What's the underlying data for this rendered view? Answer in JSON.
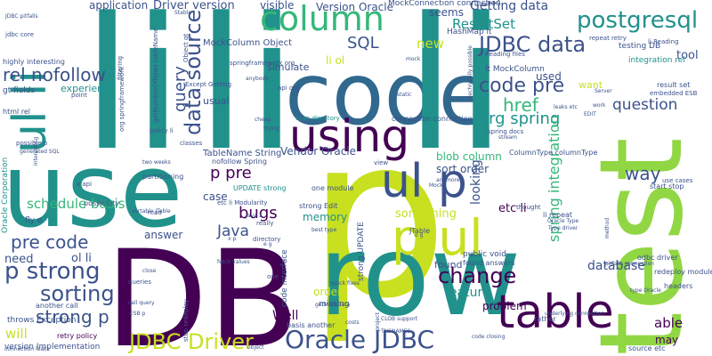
{
  "palette": {
    "purple": "#440154",
    "indigo": "#3b528b",
    "blue": "#31688e",
    "teal": "#21918c",
    "green": "#35b779",
    "lime": "#90d743",
    "yellow": "#c8e020"
  },
  "words": [
    {
      "text": "p",
      "color": "yellow"
    },
    {
      "text": "DB",
      "color": "purple"
    },
    {
      "text": "row",
      "color": "teal"
    },
    {
      "text": "use",
      "color": "teal"
    },
    {
      "text": "test",
      "color": "lime"
    },
    {
      "text": "code",
      "color": "blue"
    },
    {
      "text": "li",
      "color": "teal"
    },
    {
      "text": "li",
      "color": "teal"
    },
    {
      "text": "li",
      "color": "teal"
    },
    {
      "text": "column",
      "color": "green"
    },
    {
      "text": "using",
      "color": "purple"
    },
    {
      "text": "table",
      "color": "purple"
    },
    {
      "text": "ul p",
      "color": "indigo"
    },
    {
      "text": "p ul",
      "color": "yellow"
    },
    {
      "text": "ul li",
      "color": "teal"
    },
    {
      "text": "Oracle JDBC",
      "color": "indigo"
    },
    {
      "text": "JDBC Driver",
      "color": "yellow"
    },
    {
      "text": "JDBC data",
      "color": "indigo"
    },
    {
      "text": "postgresql",
      "color": "teal"
    },
    {
      "text": "data source",
      "color": "indigo"
    },
    {
      "text": "code pre",
      "color": "indigo"
    },
    {
      "text": "change",
      "color": "purple"
    },
    {
      "text": "sorting",
      "color": "indigo"
    },
    {
      "text": "p strong",
      "color": "indigo"
    },
    {
      "text": "strong p",
      "color": "indigo"
    },
    {
      "text": "pre code",
      "color": "indigo"
    },
    {
      "text": "rel nofollow",
      "color": "indigo"
    },
    {
      "text": "Getting data",
      "color": "indigo"
    },
    {
      "text": "ResultSet",
      "color": "teal"
    },
    {
      "text": "SQL",
      "color": "indigo"
    },
    {
      "text": "query",
      "color": "indigo"
    },
    {
      "text": "new",
      "color": "yellow"
    },
    {
      "text": "href",
      "color": "green"
    },
    {
      "text": "org spring",
      "color": "teal"
    },
    {
      "text": "question",
      "color": "indigo"
    },
    {
      "text": "spring integration",
      "color": "green"
    },
    {
      "text": "way",
      "color": "indigo"
    },
    {
      "text": "bugs",
      "color": "purple"
    },
    {
      "text": "Java",
      "color": "indigo"
    },
    {
      "text": "p pre",
      "color": "purple"
    },
    {
      "text": "schedule basis",
      "color": "green"
    },
    {
      "text": "Driver version",
      "color": "indigo"
    },
    {
      "text": "application",
      "color": "indigo"
    },
    {
      "text": "Version Oracle",
      "color": "indigo"
    },
    {
      "text": "MockConnection connection",
      "color": "indigo"
    },
    {
      "text": "visible",
      "color": "indigo"
    },
    {
      "text": "seems",
      "color": "indigo"
    },
    {
      "text": "Vendor Oracle",
      "color": "indigo"
    },
    {
      "text": "blob column",
      "color": "green"
    },
    {
      "text": "sort order",
      "color": "indigo"
    },
    {
      "text": "something",
      "color": "yellow"
    },
    {
      "text": "etc li",
      "color": "purple"
    },
    {
      "text": "memory",
      "color": "teal"
    },
    {
      "text": "looking",
      "color": "indigo"
    },
    {
      "text": "feature",
      "color": "teal"
    },
    {
      "text": "problem",
      "color": "purple"
    },
    {
      "text": "database",
      "color": "indigo"
    },
    {
      "text": "able",
      "color": "purple"
    },
    {
      "text": "may",
      "color": "purple"
    },
    {
      "text": "order",
      "color": "yellow"
    },
    {
      "text": "Well",
      "color": "purple"
    },
    {
      "text": "will",
      "color": "yellow"
    },
    {
      "text": "need",
      "color": "indigo"
    },
    {
      "text": "ol li",
      "color": "indigo"
    },
    {
      "text": "answer",
      "color": "indigo"
    },
    {
      "text": "case",
      "color": "indigo"
    },
    {
      "text": "used",
      "color": "indigo"
    },
    {
      "text": "want",
      "color": "yellow"
    },
    {
      "text": "tool",
      "color": "indigo"
    },
    {
      "text": "found",
      "color": "indigo"
    },
    {
      "text": "experience",
      "color": "teal"
    },
    {
      "text": "usual",
      "color": "indigo"
    },
    {
      "text": "simulate",
      "color": "indigo"
    },
    {
      "text": "li ol",
      "color": "yellow"
    },
    {
      "text": "TableName String",
      "color": "indigo"
    },
    {
      "text": "MockColumn Object",
      "color": "indigo"
    },
    {
      "text": "lt MockColumn",
      "color": "indigo"
    },
    {
      "text": "HashMap lt",
      "color": "indigo"
    },
    {
      "text": "integration rel",
      "color": "teal"
    },
    {
      "text": "testing DB",
      "color": "indigo"
    },
    {
      "text": "retry policy",
      "color": "purple"
    },
    {
      "text": "throws Exception",
      "color": "indigo"
    },
    {
      "text": "version Implementation",
      "color": "indigo"
    },
    {
      "text": "Oracle Corporation",
      "color": "teal"
    },
    {
      "text": "gt fields",
      "color": "indigo"
    },
    {
      "text": "html rel",
      "color": "indigo"
    },
    {
      "text": "highly interesting",
      "color": "indigo"
    },
    {
      "text": "another call",
      "color": "indigo"
    },
    {
      "text": "code interface",
      "color": "indigo"
    },
    {
      "text": "strong UPDATE",
      "color": "indigo"
    },
    {
      "text": "strong Edit",
      "color": "indigo"
    },
    {
      "text": "one module",
      "color": "indigo"
    },
    {
      "text": "UPDATE strong",
      "color": "teal"
    },
    {
      "text": "nofollow Spring",
      "color": "indigo"
    },
    {
      "text": "found answers",
      "color": "indigo"
    },
    {
      "text": "public void",
      "color": "indigo"
    },
    {
      "text": "missing",
      "color": "indigo"
    },
    {
      "text": "basis another",
      "color": "indigo"
    },
    {
      "text": "fly e",
      "color": "indigo"
    },
    {
      "text": "partitioning",
      "color": "indigo"
    },
    {
      "text": "possibility",
      "color": "indigo"
    },
    {
      "text": "redeploy module",
      "color": "indigo"
    },
    {
      "text": "odbc driver",
      "color": "indigo"
    },
    {
      "text": "source etc",
      "color": "indigo"
    },
    {
      "text": "headers",
      "color": "indigo"
    },
    {
      "text": "start stop",
      "color": "indigo"
    },
    {
      "text": "li repeat",
      "color": "indigo"
    },
    {
      "text": "result set",
      "color": "indigo"
    },
    {
      "text": "embedded ESB",
      "color": "indigo"
    },
    {
      "text": "li Reading",
      "color": "indigo"
    },
    {
      "text": "repeat retry",
      "color": "indigo"
    },
    {
      "text": "Reading files",
      "color": "indigo"
    },
    {
      "text": "springframework org",
      "color": "indigo"
    },
    {
      "text": "api org",
      "color": "indigo"
    },
    {
      "text": "scan directory",
      "color": "teal"
    },
    {
      "text": "connection connection",
      "color": "indigo"
    },
    {
      "text": "spring docs",
      "color": "indigo"
    },
    {
      "text": "ColumnType columnType",
      "color": "indigo"
    },
    {
      "text": "etc li Modularity",
      "color": "indigo"
    },
    {
      "text": "classes",
      "color": "indigo"
    },
    {
      "text": "policy li",
      "color": "indigo"
    },
    {
      "text": "fetch values",
      "color": "indigo"
    },
    {
      "text": "queries",
      "color": "indigo"
    },
    {
      "text": "Except Getting",
      "color": "indigo"
    },
    {
      "text": "getNumberOfRows tableName",
      "color": "indigo"
    },
    {
      "text": "org springframework",
      "color": "indigo"
    },
    {
      "text": "directory",
      "color": "indigo"
    },
    {
      "text": "thought",
      "color": "indigo"
    },
    {
      "text": "JTable",
      "color": "indigo"
    },
    {
      "text": "Oracle Type",
      "color": "indigo"
    },
    {
      "text": "type Oracle",
      "color": "indigo"
    },
    {
      "text": "use cases",
      "color": "indigo"
    },
    {
      "text": "jdbc core",
      "color": "indigo"
    },
    {
      "text": "possible p",
      "color": "indigo"
    },
    {
      "text": "point",
      "color": "indigo"
    },
    {
      "text": "sortable JTable",
      "color": "indigo"
    },
    {
      "text": "Object gt",
      "color": "indigo"
    },
    {
      "text": "filtering",
      "color": "indigo"
    },
    {
      "text": "stop redeploy",
      "color": "indigo"
    },
    {
      "text": "call query",
      "color": "indigo"
    },
    {
      "text": "ESB p",
      "color": "indigo"
    },
    {
      "text": "x api",
      "color": "indigo"
    },
    {
      "text": "really",
      "color": "indigo"
    },
    {
      "text": "read",
      "color": "indigo"
    },
    {
      "text": "view",
      "color": "indigo"
    },
    {
      "text": "rather",
      "color": "indigo"
    },
    {
      "text": "pitfalls connection",
      "color": "indigo"
    },
    {
      "text": "quick fixes",
      "color": "indigo"
    },
    {
      "text": "getMetaData",
      "color": "indigo"
    },
    {
      "text": "connection leaks",
      "color": "indigo"
    },
    {
      "text": "JDBC pitfalls",
      "color": "indigo"
    },
    {
      "text": "technically possible",
      "color": "indigo"
    },
    {
      "text": "leaks etc",
      "color": "indigo"
    },
    {
      "text": "underlying connection",
      "color": "indigo"
    },
    {
      "text": "best type",
      "color": "indigo"
    },
    {
      "text": "Server",
      "color": "indigo"
    },
    {
      "text": "work",
      "color": "indigo"
    },
    {
      "text": "mock",
      "color": "indigo"
    },
    {
      "text": "Stable",
      "color": "indigo"
    },
    {
      "text": "static",
      "color": "indigo"
    },
    {
      "text": "cheap",
      "color": "indigo"
    },
    {
      "text": "trying",
      "color": "indigo"
    },
    {
      "text": "anybody",
      "color": "indigo"
    },
    {
      "text": "anymore",
      "color": "indigo"
    },
    {
      "text": "close",
      "color": "indigo"
    },
    {
      "text": "costs",
      "color": "indigo"
    },
    {
      "text": "stream",
      "color": "indigo"
    },
    {
      "text": "method",
      "color": "indigo"
    },
    {
      "text": "code closing",
      "color": "indigo"
    },
    {
      "text": "CLOB support",
      "color": "indigo"
    },
    {
      "text": "TNSNAMES",
      "color": "indigo"
    },
    {
      "text": "object",
      "color": "indigo"
    },
    {
      "text": "two weeks",
      "color": "indigo"
    },
    {
      "text": "o g",
      "color": "indigo"
    },
    {
      "text": "e g",
      "color": "indigo"
    },
    {
      "text": "EDIT",
      "color": "indigo"
    },
    {
      "text": "one",
      "color": "indigo"
    },
    {
      "text": "generated SQL",
      "color": "indigo"
    },
    {
      "text": "Type driver",
      "color": "indigo"
    },
    {
      "text": "project",
      "color": "indigo"
    },
    {
      "text": "Java 1",
      "color": "indigo"
    },
    {
      "text": "interesting",
      "color": "indigo"
    },
    {
      "text": "x p",
      "color": "indigo"
    },
    {
      "text": "Mock",
      "color": "indigo"
    }
  ]
}
